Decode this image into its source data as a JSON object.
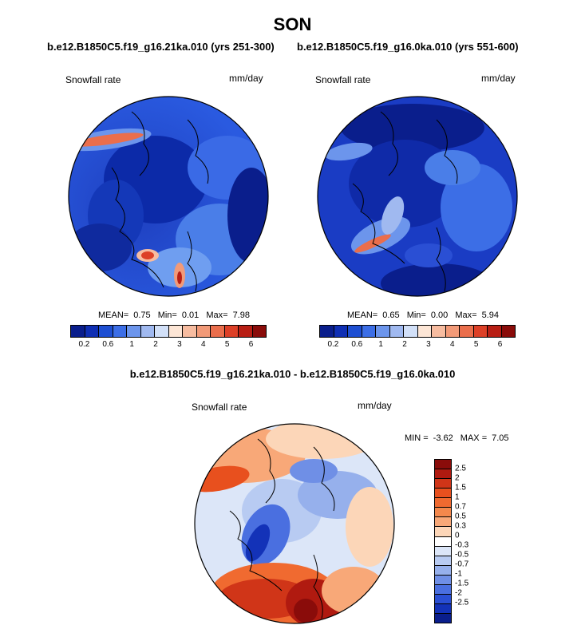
{
  "title": "SON",
  "panels": [
    {
      "case_label": "b.e12.B1850C5.f19_g16.21ka.010 (yrs 251-300)",
      "variable": "Snowfall rate",
      "units": "mm/day",
      "mean_label": "MEAN=",
      "mean": "0.75",
      "min_label": "Min=",
      "min": "0.01",
      "max_label": "Max=",
      "max": "7.98"
    },
    {
      "case_label": "b.e12.B1850C5.f19_g16.0ka.010 (yrs 551-600)",
      "variable": "Snowfall rate",
      "units": "mm/day",
      "mean_label": "MEAN=",
      "mean": "0.65",
      "min_label": "Min=",
      "min": "0.00",
      "max_label": "Max=",
      "max": "5.94"
    }
  ],
  "abs_colorbar": {
    "colors": [
      "#0a1e8c",
      "#0f2fb4",
      "#1e4fd2",
      "#3c6ee6",
      "#6c95ec",
      "#a0b9f0",
      "#d2e0f8",
      "#fde6d6",
      "#f7bca0",
      "#f29a78",
      "#ea6e4c",
      "#dd4027",
      "#b81e14",
      "#8a0c0a"
    ],
    "ticks": [
      "0.2",
      "0.6",
      "1",
      "2",
      "3",
      "4",
      "5",
      "6"
    ]
  },
  "diff": {
    "title": "b.e12.B1850C5.f19_g16.21ka.010 - b.e12.B1850C5.f19_g16.0ka.010",
    "variable": "Snowfall rate",
    "units": "mm/day",
    "min_label": "MIN =",
    "min": "-3.62",
    "max_label": "MAX =",
    "max": "7.05",
    "colorbar": {
      "colors": [
        "#8a0c0a",
        "#b01a10",
        "#d03518",
        "#e8501e",
        "#f06a30",
        "#f4884c",
        "#f8a878",
        "#fcd6b8",
        "#ffffff",
        "#dce6f8",
        "#b8cbf2",
        "#96b0ec",
        "#6f8fe6",
        "#4a6fe0",
        "#2a4fd4",
        "#1332b8",
        "#0a1e8c"
      ],
      "ticks": [
        "2.5",
        "2",
        "1.5",
        "1",
        "0.7",
        "0.5",
        "0.3",
        "0",
        "-0.3",
        "-0.5",
        "-0.7",
        "-1",
        "-1.5",
        "-2",
        "-2.5"
      ]
    }
  }
}
